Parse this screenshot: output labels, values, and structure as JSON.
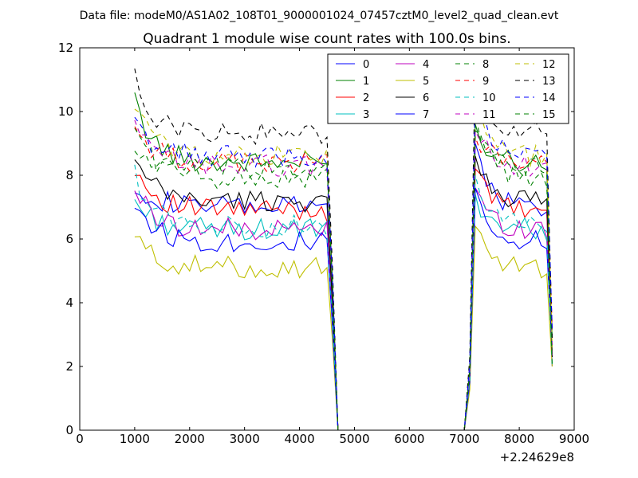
{
  "figure": {
    "suptitle": "Data file: modeM0/AS1A02_108T01_9000001024_07457cztM0_level2_quad_clean.evt"
  },
  "chart_data": {
    "type": "line",
    "title": "Quadrant 1 module wise count rates with 100.0s bins.",
    "xlabel": "",
    "ylabel": "",
    "x_offset_label": "+2.24629e8",
    "xlim": [
      0,
      9000
    ],
    "ylim": [
      0,
      12
    ],
    "xticks": [
      0,
      1000,
      2000,
      3000,
      4000,
      5000,
      6000,
      7000,
      8000,
      9000
    ],
    "yticks": [
      0,
      2,
      4,
      6,
      8,
      10,
      12
    ],
    "grid": false,
    "legend": {
      "placement": "top-right",
      "columns": 4
    },
    "x": [
      1000,
      1100,
      1200,
      1300,
      1400,
      1500,
      1600,
      1700,
      1800,
      1900,
      2000,
      2100,
      2200,
      2300,
      2400,
      2500,
      2600,
      2700,
      2800,
      2900,
      3000,
      3100,
      3200,
      3300,
      3400,
      3500,
      3600,
      3700,
      3800,
      3900,
      4000,
      4100,
      4200,
      4300,
      4400,
      4500,
      4600,
      4700,
      7000,
      7100,
      7200,
      7300,
      7400,
      7500,
      7600,
      7700,
      7800,
      7900,
      8000,
      8100,
      8200,
      8300,
      8400,
      8500,
      8600
    ],
    "series": [
      {
        "name": "0",
        "color": "#0000ff",
        "dashed": false,
        "base": 7.0,
        "start": 7.8,
        "peak": 9.0
      },
      {
        "name": "1",
        "color": "#008000",
        "dashed": false,
        "base": 8.4,
        "start": 10.3,
        "peak": 9.6
      },
      {
        "name": "2",
        "color": "#ff0000",
        "dashed": false,
        "base": 6.9,
        "start": 8.3,
        "peak": 8.2
      },
      {
        "name": "3",
        "color": "#00bfbf",
        "dashed": false,
        "base": 6.3,
        "start": 7.2,
        "peak": 7.4
      },
      {
        "name": "4",
        "color": "#bf00bf",
        "dashed": false,
        "base": 6.3,
        "start": 7.6,
        "peak": 7.6
      },
      {
        "name": "5",
        "color": "#bfbf00",
        "dashed": false,
        "base": 5.1,
        "start": 6.1,
        "peak": 6.4
      },
      {
        "name": "6",
        "color": "#000000",
        "dashed": false,
        "base": 7.2,
        "start": 8.4,
        "peak": 8.6
      },
      {
        "name": "7",
        "color": "#0000ff",
        "dashed": false,
        "base": 5.9,
        "start": 7.2,
        "peak": 7.6
      },
      {
        "name": "8",
        "color": "#008000",
        "dashed": true,
        "base": 7.9,
        "start": 9.6,
        "peak": 9.9
      },
      {
        "name": "9",
        "color": "#ff0000",
        "dashed": true,
        "base": 8.4,
        "start": 9.5,
        "peak": 9.2
      },
      {
        "name": "10",
        "color": "#00bfbf",
        "dashed": true,
        "base": 6.4,
        "start": 8.0,
        "peak": 8.0
      },
      {
        "name": "11",
        "color": "#bf00bf",
        "dashed": true,
        "base": 8.3,
        "start": 9.5,
        "peak": 9.4
      },
      {
        "name": "12",
        "color": "#bfbf00",
        "dashed": true,
        "base": 8.6,
        "start": 10.3,
        "peak": 10.1
      },
      {
        "name": "13",
        "color": "#000000",
        "dashed": true,
        "base": 9.3,
        "start": 11.0,
        "peak": 11.6
      },
      {
        "name": "14",
        "color": "#0000ff",
        "dashed": true,
        "base": 8.6,
        "start": 9.6,
        "peak": 10.6
      },
      {
        "name": "15",
        "color": "#008000",
        "dashed": true,
        "base": 8.2,
        "start": 8.8,
        "peak": 9.4
      }
    ]
  }
}
